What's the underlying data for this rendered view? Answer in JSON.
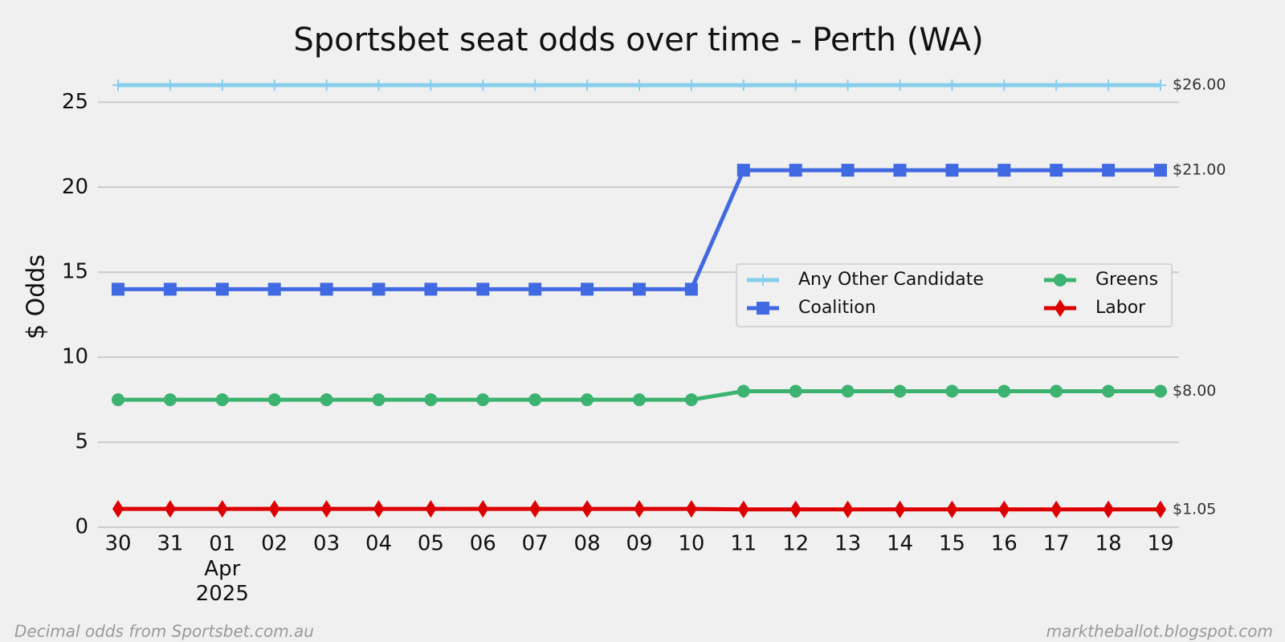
{
  "chart_data": {
    "type": "line",
    "title": "Sportsbet seat odds over time - Perth (WA)",
    "y_label": "$ Odds",
    "footer_left": "Decimal odds from Sportsbet.com.au",
    "footer_right": "marktheballot.blogspot.com",
    "categories": [
      "30",
      "31",
      "01\nApr\n2025",
      "02",
      "03",
      "04",
      "05",
      "06",
      "07",
      "08",
      "09",
      "10",
      "11",
      "12",
      "13",
      "14",
      "15",
      "16",
      "17",
      "18",
      "19"
    ],
    "ylim": [
      0,
      27
    ],
    "yticks": [
      0,
      5,
      10,
      15,
      20,
      25
    ],
    "grid": true,
    "legend": "center right",
    "series": [
      {
        "name": "Any Other Candidate",
        "color": "#87ceeb",
        "marker": "plus",
        "values": [
          26,
          26,
          26,
          26,
          26,
          26,
          26,
          26,
          26,
          26,
          26,
          26,
          26,
          26,
          26,
          26,
          26,
          26,
          26,
          26,
          26
        ],
        "value_labels": [
          null,
          null,
          null,
          null,
          null,
          null,
          null,
          null,
          null,
          null,
          null,
          null,
          null,
          null,
          null,
          null,
          null,
          null,
          null,
          null,
          "$26.00"
        ]
      },
      {
        "name": "Coalition",
        "color": "#4169e1",
        "marker": "square",
        "values": [
          14,
          14,
          14,
          14,
          14,
          14,
          14,
          14,
          14,
          14,
          14,
          14,
          21,
          21,
          21,
          21,
          21,
          21,
          21,
          21,
          21
        ],
        "value_labels": [
          null,
          null,
          null,
          null,
          null,
          null,
          null,
          null,
          null,
          null,
          null,
          null,
          null,
          null,
          null,
          null,
          null,
          null,
          null,
          null,
          "$21.00"
        ]
      },
      {
        "name": "Greens",
        "color": "#3cb371",
        "marker": "circle",
        "values": [
          7.5,
          7.5,
          7.5,
          7.5,
          7.5,
          7.5,
          7.5,
          7.5,
          7.5,
          7.5,
          7.5,
          7.5,
          8,
          8,
          8,
          8,
          8,
          8,
          8,
          8,
          8
        ],
        "value_labels": [
          null,
          null,
          null,
          null,
          null,
          null,
          null,
          null,
          null,
          null,
          null,
          null,
          null,
          null,
          null,
          null,
          null,
          null,
          null,
          null,
          "$8.00"
        ]
      },
      {
        "name": "Labor",
        "color": "#dd0000",
        "marker": "diamond",
        "values": [
          1.08,
          1.08,
          1.08,
          1.08,
          1.08,
          1.08,
          1.08,
          1.08,
          1.08,
          1.08,
          1.08,
          1.08,
          1.05,
          1.05,
          1.05,
          1.05,
          1.05,
          1.05,
          1.05,
          1.05,
          1.05
        ],
        "value_labels": [
          null,
          null,
          null,
          null,
          null,
          null,
          null,
          null,
          null,
          null,
          null,
          null,
          null,
          null,
          null,
          null,
          null,
          null,
          null,
          null,
          "$1.05"
        ]
      }
    ]
  }
}
